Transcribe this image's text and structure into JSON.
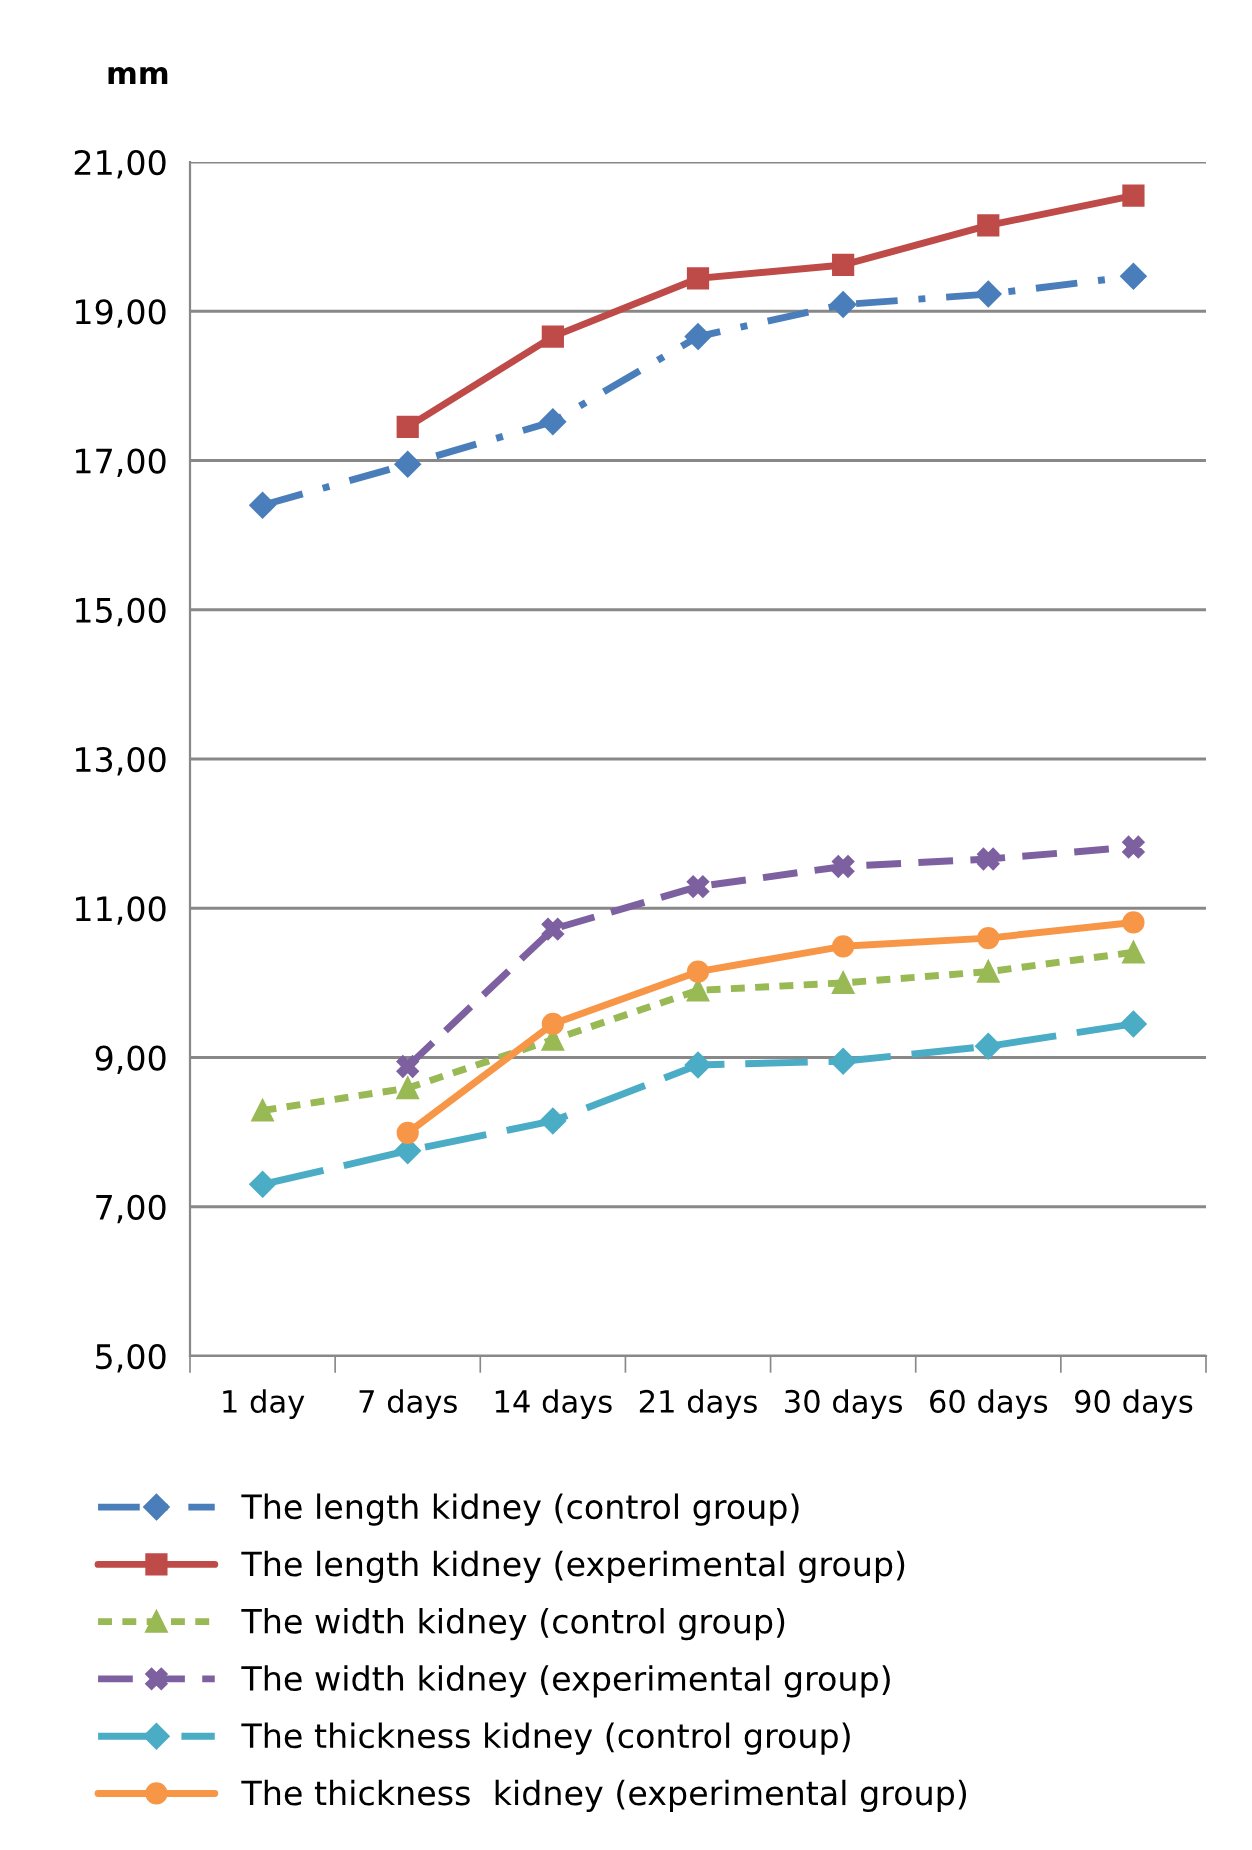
{
  "chart_data": {
    "type": "line",
    "ylabel": "mm",
    "categories": [
      "1 day",
      "7 days",
      "14 days",
      "21 days",
      "30 days",
      "60 days",
      "90 days"
    ],
    "ylim": [
      5,
      21
    ],
    "yticks": [
      {
        "value": 5,
        "label": "5,00"
      },
      {
        "value": 7,
        "label": "7,00"
      },
      {
        "value": 9,
        "label": "9,00"
      },
      {
        "value": 11,
        "label": "11,00"
      },
      {
        "value": 13,
        "label": "13,00"
      },
      {
        "value": 15,
        "label": "15,00"
      },
      {
        "value": 17,
        "label": "17,00"
      },
      {
        "value": 19,
        "label": "19,00"
      },
      {
        "value": 21,
        "label": "21,00"
      }
    ],
    "grid": "y",
    "legend": "bottom",
    "series": [
      {
        "name": "The length kidney (control group)",
        "color": "#4a7ebb",
        "marker": "diamond",
        "line_style": "dashdot",
        "values": [
          16.4,
          16.95,
          17.52,
          18.66,
          19.09,
          19.23,
          19.47
        ]
      },
      {
        "name": "The length kidney (experimental group)",
        "color": "#be4b48",
        "marker": "square",
        "line_style": "solid",
        "values": [
          null,
          17.45,
          18.66,
          19.44,
          19.62,
          20.15,
          20.55
        ]
      },
      {
        "name": "The width kidney (control group)",
        "color": "#98b954",
        "marker": "triangle",
        "line_style": "dotted",
        "values": [
          8.29,
          8.59,
          9.24,
          9.9,
          10.0,
          10.15,
          10.41
        ]
      },
      {
        "name": "The width kidney (experimental group)",
        "color": "#7d60a0",
        "marker": "cross",
        "line_style": "dashed",
        "values": [
          null,
          8.88,
          10.72,
          11.29,
          11.56,
          11.66,
          11.82
        ]
      },
      {
        "name": "The thickness kidney (control group)",
        "color": "#4bacc6",
        "marker": "diamond",
        "line_style": "longdash",
        "values": [
          7.3,
          7.75,
          8.15,
          8.9,
          8.95,
          9.15,
          9.45
        ]
      },
      {
        "name": "The thickness  kidney (experimental group)",
        "color": "#f79646",
        "marker": "circle",
        "line_style": "solid",
        "values": [
          null,
          7.99,
          9.45,
          10.15,
          10.49,
          10.6,
          10.81
        ]
      }
    ]
  }
}
